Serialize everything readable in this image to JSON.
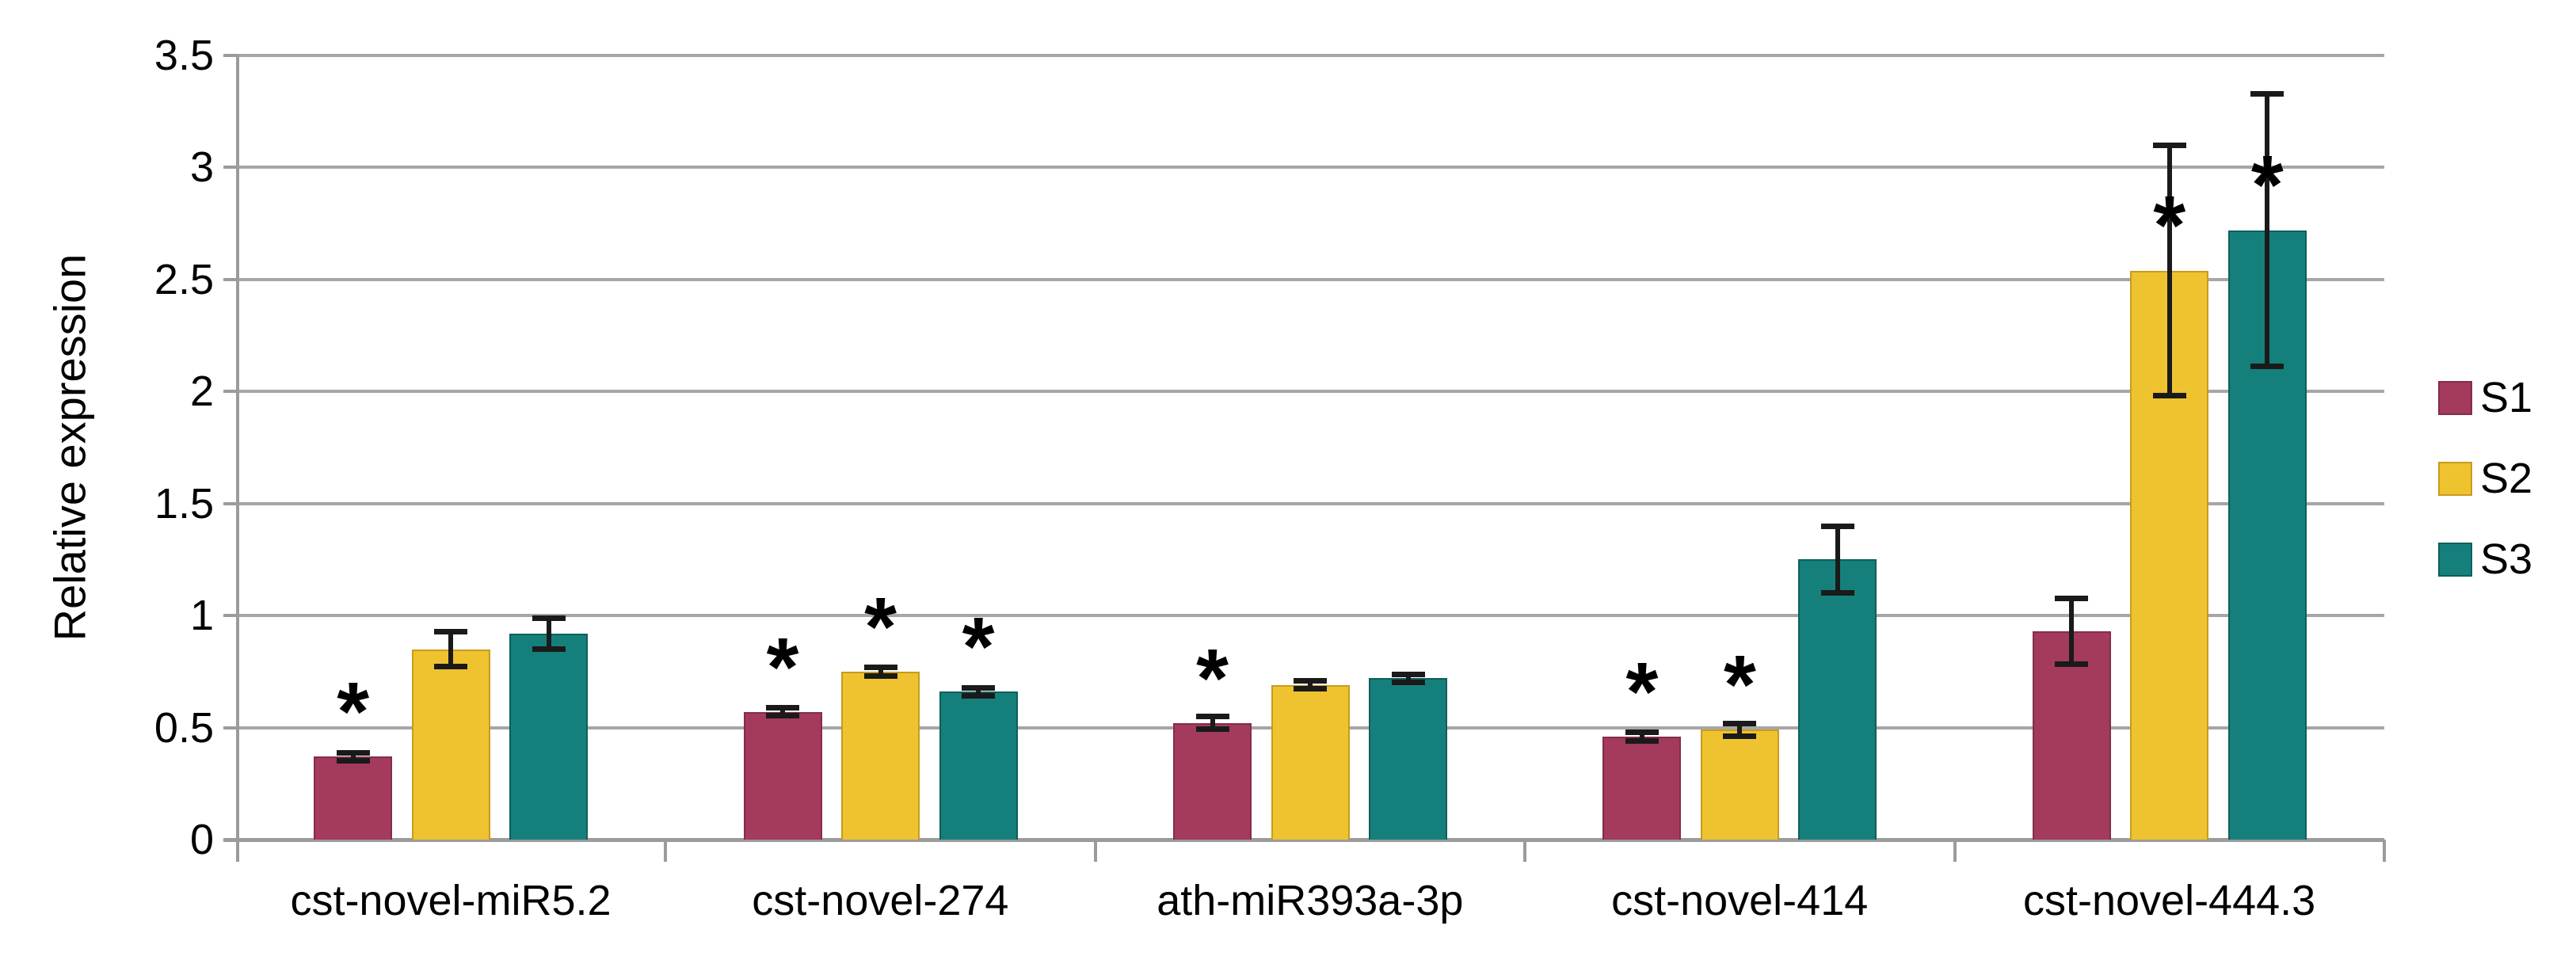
{
  "chart_data": {
    "type": "bar",
    "title": "",
    "ylabel": "Relative expression",
    "xlabel": "",
    "categories": [
      "cst-novel-miR5.2",
      "cst-novel-274",
      "ath-miR393a-3p",
      "cst-novel-414",
      "cst-novel-444.3"
    ],
    "series": [
      {
        "name": "S1",
        "color": "#a43a5c",
        "border_color": "#822e4a",
        "values": [
          0.37,
          0.57,
          0.52,
          0.46,
          0.93
        ],
        "errors": [
          0.02,
          0.02,
          0.03,
          0.02,
          0.15
        ],
        "significant": [
          true,
          true,
          true,
          true,
          false
        ]
      },
      {
        "name": "S2",
        "color": "#efc230",
        "border_color": "#c89b1f",
        "values": [
          0.85,
          0.75,
          0.69,
          0.49,
          2.54
        ],
        "errors": [
          0.08,
          0.02,
          0.02,
          0.03,
          0.56
        ],
        "significant": [
          false,
          true,
          false,
          true,
          true
        ]
      },
      {
        "name": "S3",
        "color": "#15807b",
        "border_color": "#0e5f5b",
        "values": [
          0.92,
          0.66,
          0.72,
          1.25,
          2.72
        ],
        "errors": [
          0.07,
          0.02,
          0.02,
          0.15,
          0.61
        ],
        "significant": [
          false,
          true,
          false,
          false,
          true
        ]
      }
    ],
    "ylim": [
      0,
      3.5
    ],
    "ytick_step": 0.5,
    "ytick_labels": [
      "0",
      "0.5",
      "1",
      "1.5",
      "2",
      "2.5",
      "3",
      "3.5"
    ],
    "grid": true,
    "legend_position": "right",
    "legend_entries": [
      "S1",
      "S2",
      "S3"
    ],
    "significance_marker": "*",
    "colors": {
      "gridline": "#a6a6a6",
      "axis": "#9b9b9b",
      "error_bar": "#1a1a1a",
      "text": "#000000",
      "background": "#ffffff"
    }
  }
}
